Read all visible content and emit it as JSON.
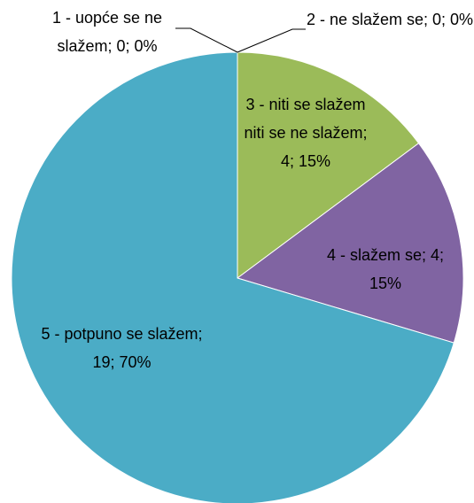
{
  "chart_data": {
    "type": "pie",
    "categories": [
      "1 - uopće se ne slažem",
      "2 - ne slažem se",
      "3 - niti se slažem niti se ne slažem",
      "4 - slažem se",
      "5 - potpuno se slažem"
    ],
    "values": [
      0,
      0,
      4,
      4,
      19
    ],
    "value_labels": [
      "1 - uopće se ne slažem; 0; 0%",
      "2 - ne slažem se; 0; 0%",
      "3 - niti se slažem niti se ne slažem; 4; 15%",
      "4 - slažem se; 4; 15%",
      "5 - potpuno se slažem; 19; 70%"
    ],
    "colors": [
      "#4f81bd",
      "#c0504d",
      "#9bbb59",
      "#8064a2",
      "#4bacc6"
    ]
  }
}
